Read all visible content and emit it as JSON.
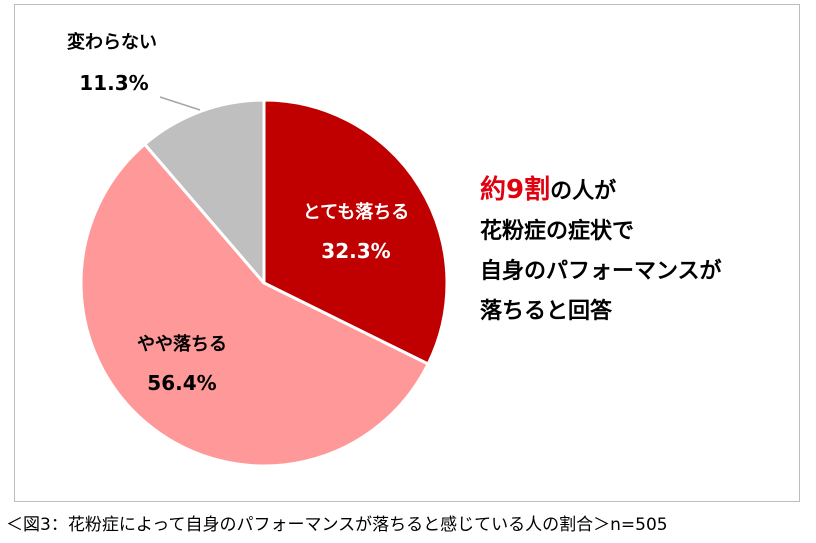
{
  "chart_data": {
    "type": "pie",
    "slices": [
      {
        "label": "とても落ちる",
        "value": 32.3,
        "value_label": "32.3%",
        "color": "#c00000",
        "label_color": "#ffffff"
      },
      {
        "label": "やや落ちる",
        "value": 56.4,
        "value_label": "56.4%",
        "color": "#ff9999",
        "label_color": "#000000"
      },
      {
        "label": "変わらない",
        "value": 11.3,
        "value_label": "11.3%",
        "color": "#bfbfbf",
        "label_color": "#000000"
      }
    ],
    "start": "12 o'clock",
    "direction": "clockwise"
  },
  "headline": {
    "emphasis": "約9割",
    "line1_rest": "の人が",
    "line2": "花粉症の症状で",
    "line3": "自身のパフォーマンスが",
    "line4": "落ちると回答",
    "emphasis_color": "#e0000f"
  },
  "caption": "＜図3：花粉症によって自身のパフォーマンスが落ちると感じている人の割合＞n=505"
}
